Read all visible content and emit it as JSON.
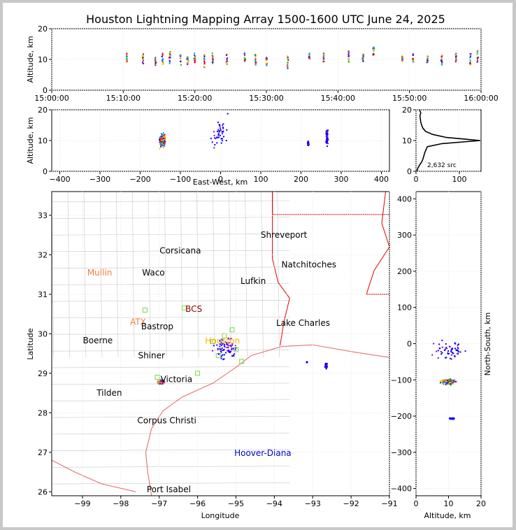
{
  "title": "Houston Lightning Mapping Array 1500-1600 UTC June 24, 2025",
  "colors": {
    "frame_bg": "#c8c8c8",
    "county_lines": "#c8c8c8",
    "state_lines": "#e00000",
    "coast": "#e06060",
    "density_curve": "#000000",
    "source_palette": [
      "#0000ff",
      "#8a00d4",
      "#00a0ff",
      "#00c800",
      "#ffd000",
      "#ff8000",
      "#ff0000"
    ]
  },
  "chart_data": [
    {
      "id": "time_altitude",
      "type": "scatter",
      "ylabel": "Altitude, km",
      "ylim": [
        0,
        20
      ],
      "yticks": [
        "0",
        "10",
        "20"
      ],
      "xlim": [
        "15:00:00",
        "16:00:00"
      ],
      "xticks": [
        "15:00:00",
        "15:10:00",
        "15:20:00",
        "15:30:00",
        "15:40:00",
        "15:50:00",
        "16:00:00"
      ],
      "clusters": [
        {
          "t": "15:10:30",
          "alt_range": [
            9,
            12
          ]
        },
        {
          "t": "15:12:45",
          "alt_range": [
            8,
            12
          ]
        },
        {
          "t": "15:14:30",
          "alt_range": [
            8,
            11
          ]
        },
        {
          "t": "15:15:30",
          "alt_range": [
            8,
            12
          ]
        },
        {
          "t": "15:16:30",
          "alt_range": [
            8,
            13
          ]
        },
        {
          "t": "15:18:00",
          "alt_range": [
            8,
            12
          ]
        },
        {
          "t": "15:19:00",
          "alt_range": [
            8,
            11
          ]
        },
        {
          "t": "15:20:00",
          "alt_range": [
            9,
            12
          ]
        },
        {
          "t": "15:21:20",
          "alt_range": [
            7,
            12
          ]
        },
        {
          "t": "15:22:30",
          "alt_range": [
            8,
            12
          ]
        },
        {
          "t": "15:24:30",
          "alt_range": [
            8,
            12
          ]
        },
        {
          "t": "15:27:00",
          "alt_range": [
            9,
            12
          ]
        },
        {
          "t": "15:28:30",
          "alt_range": [
            8,
            12
          ]
        },
        {
          "t": "15:30:00",
          "alt_range": [
            8,
            11
          ]
        },
        {
          "t": "15:33:00",
          "alt_range": [
            6,
            12
          ]
        },
        {
          "t": "15:36:00",
          "alt_range": [
            10,
            12
          ]
        },
        {
          "t": "15:38:00",
          "alt_range": [
            9,
            12
          ]
        },
        {
          "t": "15:41:30",
          "alt_range": [
            9,
            14
          ]
        },
        {
          "t": "15:43:30",
          "alt_range": [
            9,
            12
          ]
        },
        {
          "t": "15:45:00",
          "alt_range": [
            11,
            14
          ]
        },
        {
          "t": "15:49:00",
          "alt_range": [
            9,
            11
          ]
        },
        {
          "t": "15:50:30",
          "alt_range": [
            9,
            12
          ]
        },
        {
          "t": "15:52:30",
          "alt_range": [
            9,
            11
          ]
        },
        {
          "t": "15:54:30",
          "alt_range": [
            8,
            12
          ]
        },
        {
          "t": "15:56:30",
          "alt_range": [
            9,
            12
          ]
        },
        {
          "t": "15:58:30",
          "alt_range": [
            8,
            12
          ]
        },
        {
          "t": "15:59:30",
          "alt_range": [
            8,
            13
          ]
        }
      ]
    },
    {
      "id": "east_west_altitude",
      "type": "scatter",
      "xlabel": "East-West, km",
      "ylabel": "Altitude, km",
      "xlim": [
        -420,
        420
      ],
      "ylim": [
        0,
        20
      ],
      "xticks": [
        "−400",
        "−300",
        "−200",
        "−100",
        "0",
        "100",
        "200",
        "300",
        "400"
      ],
      "yticks": [
        "0",
        "10",
        "20"
      ],
      "clusters": [
        {
          "x": -145,
          "alt": 10,
          "spread_x": 10,
          "spread_alt": 3,
          "dense": true
        },
        {
          "x": 0,
          "alt": 12,
          "spread_x": 30,
          "spread_alt": 7,
          "dense": false
        },
        {
          "x": 265,
          "alt": 11,
          "spread_x": 4,
          "spread_alt": 4,
          "dense": false
        },
        {
          "x": 218,
          "alt": 9,
          "spread_x": 2,
          "spread_alt": 1,
          "dense": false
        }
      ]
    },
    {
      "id": "altitude_histogram",
      "type": "line",
      "annotation": "2,632 src",
      "xlim": [
        0,
        150
      ],
      "ylim": [
        0,
        20
      ],
      "xticks": [
        "0",
        "100"
      ],
      "yticks": [
        "0",
        "10",
        "20"
      ],
      "points": [
        [
          2,
          0
        ],
        [
          4,
          1
        ],
        [
          8,
          2
        ],
        [
          13,
          3
        ],
        [
          16,
          4
        ],
        [
          18,
          5
        ],
        [
          20,
          6
        ],
        [
          23,
          7
        ],
        [
          26,
          8
        ],
        [
          60,
          9
        ],
        [
          148,
          10
        ],
        [
          110,
          10.5
        ],
        [
          70,
          11
        ],
        [
          38,
          12
        ],
        [
          22,
          13
        ],
        [
          16,
          14
        ],
        [
          13,
          15
        ],
        [
          11,
          16
        ],
        [
          10,
          17
        ],
        [
          9,
          18
        ],
        [
          11,
          19
        ],
        [
          8,
          20
        ]
      ]
    },
    {
      "id": "plan_view_map",
      "type": "map",
      "xlabel": "Longitude",
      "ylabel": "Latitude",
      "xlim": [
        -99.8,
        -91
      ],
      "ylim": [
        25.9,
        33.6
      ],
      "xticks": [
        "−99",
        "−98",
        "−97",
        "−96",
        "−95",
        "−94",
        "−93",
        "−92",
        "−91"
      ],
      "yticks": [
        "26",
        "27",
        "28",
        "29",
        "30",
        "31",
        "32",
        "33"
      ],
      "cities": [
        {
          "name": "Shreveport",
          "lon": -93.75,
          "lat": 32.5,
          "color": "#000000"
        },
        {
          "name": "Corsicana",
          "lon": -96.45,
          "lat": 32.1,
          "color": "#000000"
        },
        {
          "name": "Natchitoches",
          "lon": -93.1,
          "lat": 31.75,
          "color": "#000000"
        },
        {
          "name": "Mullin",
          "lon": -98.55,
          "lat": 31.55,
          "color": "#f08040"
        },
        {
          "name": "Waco",
          "lon": -97.15,
          "lat": 31.55,
          "color": "#000000"
        },
        {
          "name": "Lufkin",
          "lon": -94.55,
          "lat": 31.33,
          "color": "#000000"
        },
        {
          "name": "BCS",
          "lon": -96.1,
          "lat": 30.63,
          "color": "#900000"
        },
        {
          "name": "ATX",
          "lon": -97.55,
          "lat": 30.3,
          "color": "#f08040"
        },
        {
          "name": "Bastrop",
          "lon": -97.05,
          "lat": 30.18,
          "color": "#000000"
        },
        {
          "name": "Lake Charles",
          "lon": -93.25,
          "lat": 30.27,
          "color": "#000000"
        },
        {
          "name": "Houston",
          "lon": -95.35,
          "lat": 29.82,
          "color": "#ffb000"
        },
        {
          "name": "Boerne",
          "lon": -98.6,
          "lat": 29.83,
          "color": "#000000"
        },
        {
          "name": "Shiner",
          "lon": -97.2,
          "lat": 29.45,
          "color": "#000000"
        },
        {
          "name": "Victoria",
          "lon": -96.55,
          "lat": 28.85,
          "color": "#000000"
        },
        {
          "name": "Tilden",
          "lon": -98.3,
          "lat": 28.5,
          "color": "#000000"
        },
        {
          "name": "Corpus Christi",
          "lon": -96.8,
          "lat": 27.8,
          "color": "#000000"
        },
        {
          "name": "Hoover-Diana",
          "lon": -94.3,
          "lat": 26.98,
          "color": "#0000d0"
        },
        {
          "name": "Port Isabel",
          "lon": -96.75,
          "lat": 26.06,
          "color": "#000000"
        }
      ],
      "stations_lonlat": [
        [
          -97.37,
          30.6
        ],
        [
          -96.35,
          30.65
        ],
        [
          -95.1,
          30.1
        ],
        [
          -95.3,
          29.95
        ],
        [
          -95.6,
          29.8
        ],
        [
          -95.0,
          29.6
        ],
        [
          -94.85,
          29.3
        ],
        [
          -96.0,
          29.0
        ],
        [
          -97.05,
          28.9
        ],
        [
          -95.45,
          29.45
        ]
      ],
      "source_clusters": [
        {
          "lon": -96.95,
          "lat": 28.78,
          "spread_lon": 0.12,
          "spread_lat": 0.08,
          "dense": true
        },
        {
          "lon": -95.25,
          "lat": 29.65,
          "spread_lon": 0.45,
          "spread_lat": 0.35,
          "dense": false
        },
        {
          "lon": -92.65,
          "lat": 29.2,
          "spread_lon": 0.04,
          "spread_lat": 0.1,
          "dense": false
        },
        {
          "lon": -93.15,
          "lat": 29.28,
          "spread_lon": 0.01,
          "spread_lat": 0.01,
          "dense": false
        }
      ]
    },
    {
      "id": "altitude_north_south",
      "type": "scatter",
      "xlabel": "Altitude, km",
      "ylabel": "North-South, km",
      "xlim": [
        0,
        20
      ],
      "ylim": [
        -420,
        420
      ],
      "xticks": [
        "0",
        "10",
        "20"
      ],
      "yticks": [
        "−400",
        "−300",
        "−200",
        "−100",
        "0",
        "100",
        "200",
        "300",
        "400"
      ],
      "clusters": [
        {
          "alt": 10,
          "y": -105,
          "spread_alt": 3,
          "spread_y": 10,
          "dense": true
        },
        {
          "alt": 11,
          "y": -20,
          "spread_alt": 7,
          "spread_y": 35,
          "dense": false
        },
        {
          "alt": 11,
          "y": -207,
          "spread_alt": 1,
          "spread_y": 2,
          "dense": false
        }
      ]
    }
  ]
}
